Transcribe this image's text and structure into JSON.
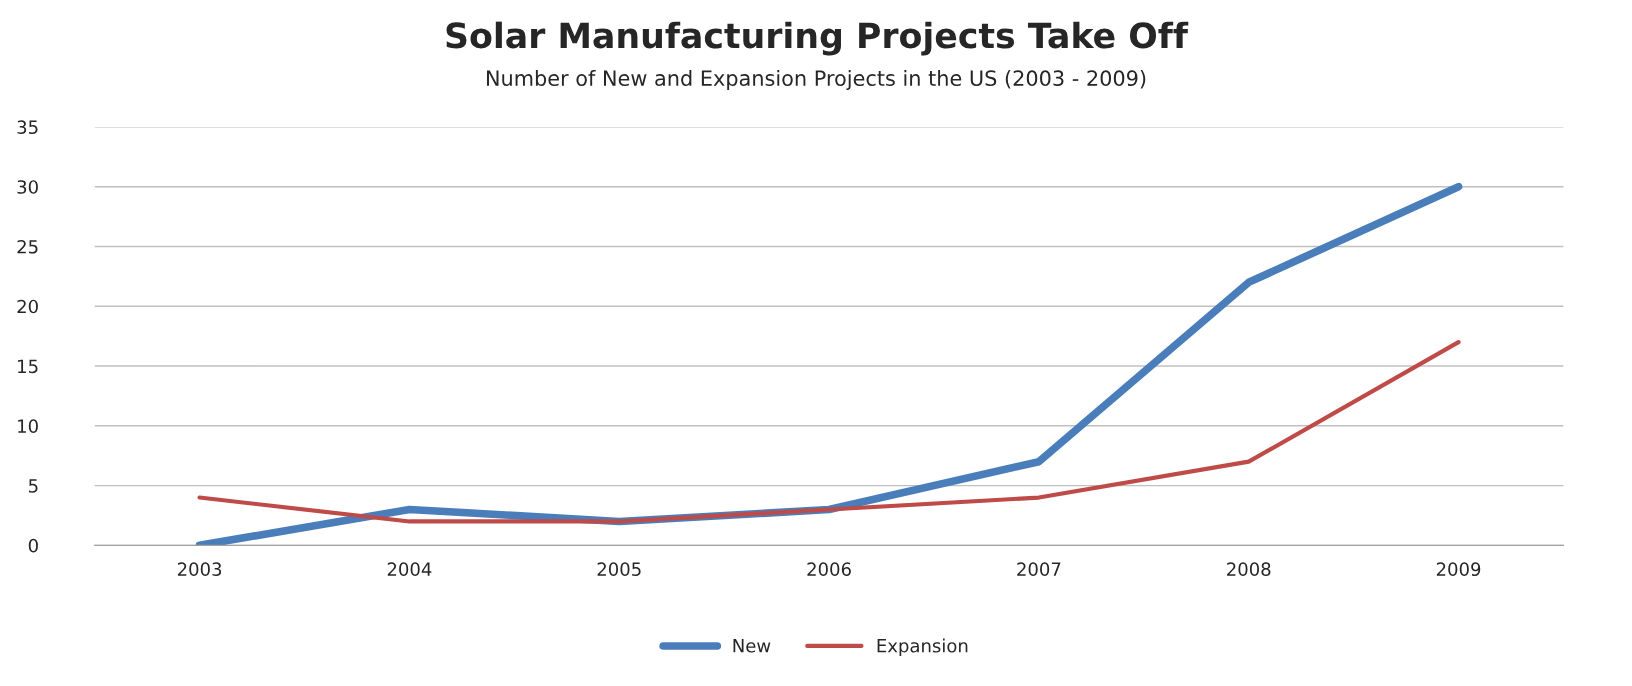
{
  "chart_data": {
    "type": "line",
    "title": "Solar Manufacturing Projects Take Off",
    "subtitle": "Number of New and Expansion Projects in the US (2003 - 2009)",
    "categories": [
      "2003",
      "2004",
      "2005",
      "2006",
      "2007",
      "2008",
      "2009"
    ],
    "series": [
      {
        "name": "New",
        "color": "#4a7ebb",
        "values": [
          0,
          3,
          2,
          3,
          7,
          22,
          30
        ]
      },
      {
        "name": "Expansion",
        "color": "#be4b48",
        "values": [
          4,
          2,
          2,
          3,
          4,
          7,
          17
        ]
      }
    ],
    "ylim": [
      0,
      35
    ],
    "yticks": [
      0,
      5,
      10,
      15,
      20,
      25,
      30,
      35
    ],
    "grid": "y",
    "legend": "bottom",
    "marker": "none",
    "line_style": "solid"
  }
}
